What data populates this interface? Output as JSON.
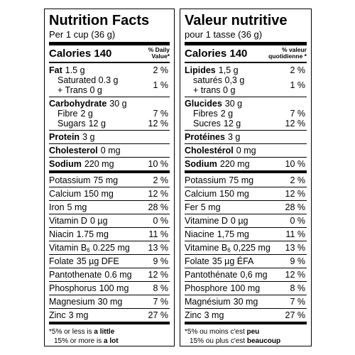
{
  "panels": [
    {
      "title": "Nutrition Facts",
      "serving": "Per 1 cup (36 g)",
      "calories": "Calories 140",
      "dv_header": [
        "% Daily",
        "Value*"
      ],
      "groups": [
        {
          "items": [
            {
              "name": "Fat",
              "amount": "1.5 g",
              "dv": "2 %",
              "bold": true
            },
            {
              "lines": [
                "Saturated 0.3 g",
                "+ Trans 0 g"
              ],
              "dv": "1 %",
              "indent": true
            }
          ]
        },
        {
          "items": [
            {
              "name": "Carbohydrate",
              "amount": "30 g",
              "bold": true
            },
            {
              "name": "Fibre",
              "amount": "2 g",
              "dv": "7 %",
              "indent": true
            },
            {
              "name": "Sugars",
              "amount": "12 g",
              "dv": "12 %",
              "indent": true
            }
          ]
        },
        {
          "items": [
            {
              "name": "Protein",
              "amount": "3 g",
              "bold": true
            }
          ]
        },
        {
          "items": [
            {
              "name": "Cholesterol",
              "amount": "0 mg",
              "bold": true
            }
          ]
        },
        {
          "items": [
            {
              "name": "Sodium",
              "amount": "220 mg",
              "dv": "10 %",
              "bold": true
            }
          ],
          "thick": true
        },
        {
          "items": [
            {
              "name": "Potassium",
              "amount": "75 mg",
              "dv": "2 %"
            }
          ]
        },
        {
          "items": [
            {
              "name": "Calcium",
              "amount": "150 mg",
              "dv": "12 %"
            }
          ]
        },
        {
          "items": [
            {
              "name": "Iron",
              "amount": "5 mg",
              "dv": "28 %"
            }
          ]
        },
        {
          "items": [
            {
              "name": "Vitamin D",
              "amount": "0 µg",
              "dv": "0 %"
            }
          ]
        },
        {
          "items": [
            {
              "name": "Niacin",
              "amount": "1.75 mg",
              "dv": "11 %"
            }
          ]
        },
        {
          "items": [
            {
              "name": "Vitamin B",
              "sub": "6",
              "amount": "0.225 mg",
              "dv": "13 %"
            }
          ]
        },
        {
          "items": [
            {
              "name": "Folate",
              "amount": "35 µg DFE",
              "dv": "9 %"
            }
          ]
        },
        {
          "items": [
            {
              "name": "Pantothenate",
              "amount": "0.6 mg",
              "dv": "12 %"
            }
          ]
        },
        {
          "items": [
            {
              "name": "Phosphorus",
              "amount": "100 mg",
              "dv": "8 %"
            }
          ]
        },
        {
          "items": [
            {
              "name": "Magnesium",
              "amount": "30 mg",
              "dv": "7 %"
            }
          ]
        },
        {
          "items": [
            {
              "name": "Zinc",
              "amount": "3 mg",
              "dv": "27 %"
            }
          ],
          "thick": true
        }
      ],
      "footnote": [
        [
          {
            "text": "*5% or less is "
          },
          {
            "text": "a little",
            "bold": true
          }
        ],
        [
          {
            "text": "15% or more is "
          },
          {
            "text": "a lot",
            "bold": true
          }
        ]
      ]
    },
    {
      "title": "Valeur nutritive",
      "serving": "pour 1 tasse (36 g)",
      "calories": "Calories 140",
      "dv_header": [
        "% valeur",
        "quotidienne *"
      ],
      "groups": [
        {
          "items": [
            {
              "name": "Lipides",
              "amount": "1,5 g",
              "dv": "2 %",
              "bold": true
            },
            {
              "lines": [
                "saturés 0,3 g",
                "+ trans 0 g"
              ],
              "dv": "1 %",
              "indent": true
            }
          ]
        },
        {
          "items": [
            {
              "name": "Glucides",
              "amount": "30 g",
              "bold": true
            },
            {
              "name": "Fibres",
              "amount": "2 g",
              "dv": "7 %",
              "indent": true
            },
            {
              "name": "Sucres",
              "amount": "12 g",
              "dv": "12 %",
              "indent": true
            }
          ]
        },
        {
          "items": [
            {
              "name": "Protéines",
              "amount": "3 g",
              "bold": true
            }
          ]
        },
        {
          "items": [
            {
              "name": "Cholestérol",
              "amount": "0 mg",
              "bold": true
            }
          ]
        },
        {
          "items": [
            {
              "name": "Sodium",
              "amount": "220 mg",
              "dv": "10 %",
              "bold": true
            }
          ],
          "thick": true
        },
        {
          "items": [
            {
              "name": "Potassium",
              "amount": "75 mg",
              "dv": "2 %"
            }
          ]
        },
        {
          "items": [
            {
              "name": "Calcium",
              "amount": "150 mg",
              "dv": "12 %"
            }
          ]
        },
        {
          "items": [
            {
              "name": "Fer",
              "amount": "5 mg",
              "dv": "28 %"
            }
          ]
        },
        {
          "items": [
            {
              "name": "Vitamine D",
              "amount": "0 µg",
              "dv": "0 %"
            }
          ]
        },
        {
          "items": [
            {
              "name": "Niacine",
              "amount": "1,75 mg",
              "dv": "11 %"
            }
          ]
        },
        {
          "items": [
            {
              "name": "Vitamine B",
              "sub": "6",
              "amount": "0,225 mg",
              "dv": "13 %"
            }
          ]
        },
        {
          "items": [
            {
              "name": "Folate",
              "amount": "35 µg ÉFA",
              "dv": "9 %"
            }
          ]
        },
        {
          "items": [
            {
              "name": "Pantothénate",
              "amount": "0,6 mg",
              "dv": "12 %"
            }
          ]
        },
        {
          "items": [
            {
              "name": "Phosphore",
              "amount": "100 mg",
              "dv": "8 %"
            }
          ]
        },
        {
          "items": [
            {
              "name": "Magnésium",
              "amount": "30 mg",
              "dv": "7 %"
            }
          ]
        },
        {
          "items": [
            {
              "name": "Zinc",
              "amount": "3 mg",
              "dv": "27 %"
            }
          ],
          "thick": true
        }
      ],
      "footnote": [
        [
          {
            "text": "*5% ou moins c'est "
          },
          {
            "text": "peu",
            "bold": true
          }
        ],
        [
          {
            "text": "15% ou plus c'est "
          },
          {
            "text": "beaucoup",
            "bold": true
          }
        ]
      ]
    }
  ]
}
